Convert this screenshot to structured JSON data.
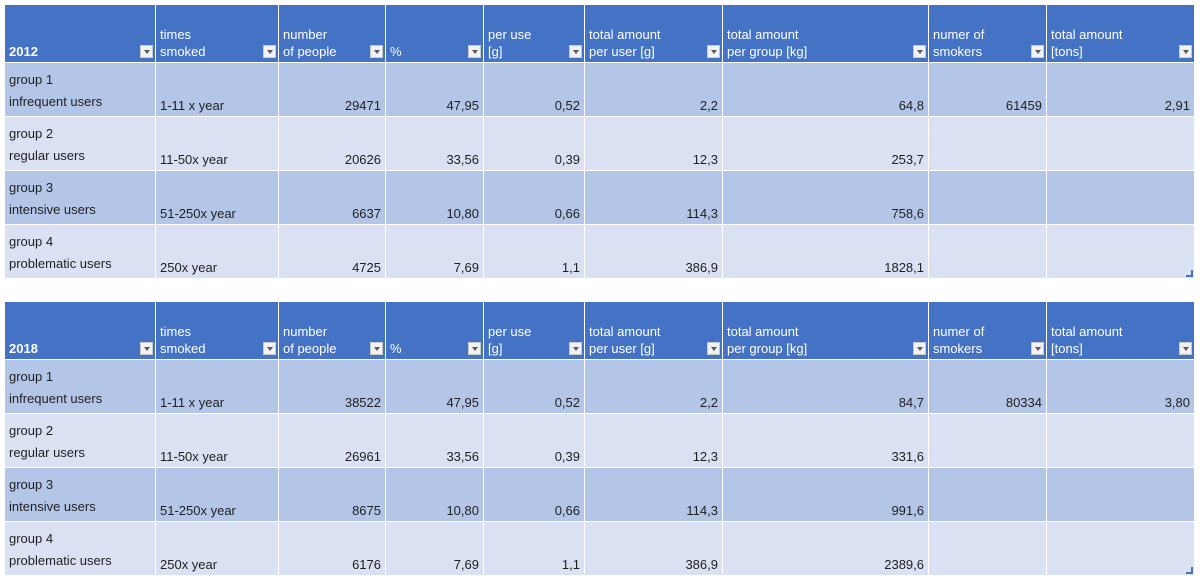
{
  "columns": [
    "times smoked",
    "number of people",
    "%",
    "per use [g]",
    "total amount per user [g]",
    "total amount per group [kg]",
    "numer of smokers",
    "total amount [tons]"
  ],
  "column_lines": [
    [
      "times",
      "smoked"
    ],
    [
      "number",
      "of people"
    ],
    [
      "",
      "%"
    ],
    [
      "per use",
      "[g]"
    ],
    [
      "total amount",
      "per user [g]"
    ],
    [
      "total amount",
      "per group [kg]"
    ],
    [
      "numer of",
      "smokers"
    ],
    [
      "total amount",
      "[tons]"
    ]
  ],
  "tables": [
    {
      "year": "2012",
      "rows": [
        {
          "group": "group 1",
          "users": "infrequent users",
          "times": "1-11 x year",
          "people": "29471",
          "pct": "47,95",
          "per_use": "0,52",
          "per_user": "2,2",
          "per_group": "64,8",
          "smokers": "61459",
          "tons": "2,91"
        },
        {
          "group": "group 2",
          "users": "regular users",
          "times": "11-50x year",
          "people": "20626",
          "pct": "33,56",
          "per_use": "0,39",
          "per_user": "12,3",
          "per_group": "253,7",
          "smokers": "",
          "tons": ""
        },
        {
          "group": "group 3",
          "users": "intensive users",
          "times": "51-250x year",
          "people": "6637",
          "pct": "10,80",
          "per_use": "0,66",
          "per_user": "114,3",
          "per_group": "758,6",
          "smokers": "",
          "tons": ""
        },
        {
          "group": "group 4",
          "users": "problematic users",
          "times": "250x year",
          "people": "4725",
          "pct": "7,69",
          "per_use": "1,1",
          "per_user": "386,9",
          "per_group": "1828,1",
          "smokers": "",
          "tons": ""
        }
      ]
    },
    {
      "year": "2018",
      "rows": [
        {
          "group": "group 1",
          "users": "infrequent users",
          "times": "1-11 x year",
          "people": "38522",
          "pct": "47,95",
          "per_use": "0,52",
          "per_user": "2,2",
          "per_group": "84,7",
          "smokers": "80334",
          "tons": "3,80"
        },
        {
          "group": "group 2",
          "users": "regular users",
          "times": "11-50x year",
          "people": "26961",
          "pct": "33,56",
          "per_use": "0,39",
          "per_user": "12,3",
          "per_group": "331,6",
          "smokers": "",
          "tons": ""
        },
        {
          "group": "group 3",
          "users": "intensive users",
          "times": "51-250x year",
          "people": "8675",
          "pct": "10,80",
          "per_use": "0,66",
          "per_user": "114,3",
          "per_group": "991,6",
          "smokers": "",
          "tons": ""
        },
        {
          "group": "group 4",
          "users": "problematic users",
          "times": "250x year",
          "people": "6176",
          "pct": "7,69",
          "per_use": "1,1",
          "per_user": "386,9",
          "per_group": "2389,6",
          "smokers": "",
          "tons": ""
        }
      ]
    }
  ],
  "icons": {
    "filter": "filter-dropdown-icon",
    "resize": "table-resize-handle-icon"
  },
  "colors": {
    "header": "#4472c4",
    "band1": "#b4c6e7",
    "band2": "#d9e1f2"
  }
}
